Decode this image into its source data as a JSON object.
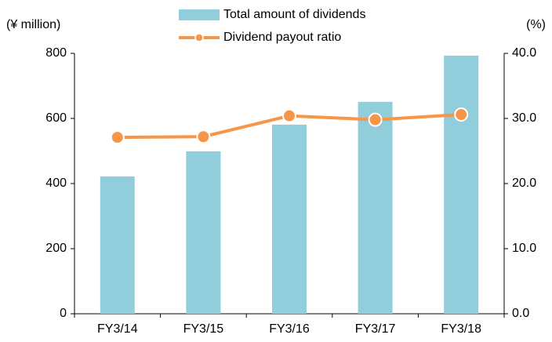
{
  "chart_data": {
    "type": "bar_line",
    "y_label": "(¥ million)",
    "y2_label": "(%)",
    "categories": [
      "FY3/14",
      "FY3/15",
      "FY3/16",
      "FY3/17",
      "FY3/18"
    ],
    "series": [
      {
        "name": "Total amount of dividends",
        "type": "bar",
        "color": "#92cddc",
        "values": [
          422,
          499,
          581,
          651,
          793
        ]
      },
      {
        "name": "Dividend payout ratio",
        "type": "line",
        "axis": "y2",
        "color": "#f79646",
        "values": [
          27.1,
          27.2,
          30.4,
          29.8,
          30.6
        ]
      }
    ],
    "ylim": [
      0,
      800
    ],
    "yticks": [
      0,
      200,
      400,
      600,
      800
    ],
    "y2lim": [
      0,
      40
    ],
    "y2ticks": [
      {
        "value": 0,
        "label": "0.0"
      },
      {
        "value": 10,
        "label": "10.0"
      },
      {
        "value": 20,
        "label": "20.0"
      },
      {
        "value": 30,
        "label": "30.0"
      },
      {
        "value": 40,
        "label": "40.0"
      }
    ],
    "grid": false
  }
}
